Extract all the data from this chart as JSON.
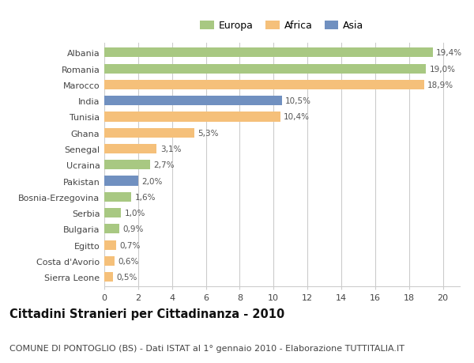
{
  "categories": [
    "Albania",
    "Romania",
    "Marocco",
    "India",
    "Tunisia",
    "Ghana",
    "Senegal",
    "Ucraina",
    "Pakistan",
    "Bosnia-Erzegovina",
    "Serbia",
    "Bulgaria",
    "Egitto",
    "Costa d'Avorio",
    "Sierra Leone"
  ],
  "values": [
    19.4,
    19.0,
    18.9,
    10.5,
    10.4,
    5.3,
    3.1,
    2.7,
    2.0,
    1.6,
    1.0,
    0.9,
    0.7,
    0.6,
    0.5
  ],
  "labels": [
    "19,4%",
    "19,0%",
    "18,9%",
    "10,5%",
    "10,4%",
    "5,3%",
    "3,1%",
    "2,7%",
    "2,0%",
    "1,6%",
    "1,0%",
    "0,9%",
    "0,7%",
    "0,6%",
    "0,5%"
  ],
  "continents": [
    "Europa",
    "Europa",
    "Africa",
    "Asia",
    "Africa",
    "Africa",
    "Africa",
    "Europa",
    "Asia",
    "Europa",
    "Europa",
    "Europa",
    "Africa",
    "Africa",
    "Africa"
  ],
  "colors": {
    "Europa": "#a8c882",
    "Africa": "#f5c07a",
    "Asia": "#7090c0"
  },
  "legend_order": [
    "Europa",
    "Africa",
    "Asia"
  ],
  "title": "Cittadini Stranieri per Cittadinanza - 2010",
  "subtitle": "COMUNE DI PONTOGLIO (BS) - Dati ISTAT al 1° gennaio 2010 - Elaborazione TUTTITALIA.IT",
  "xlim": [
    0,
    21
  ],
  "xticks": [
    0,
    2,
    4,
    6,
    8,
    10,
    12,
    14,
    16,
    18,
    20
  ],
  "background_color": "#ffffff",
  "bar_height": 0.6,
  "grid_color": "#cccccc",
  "title_fontsize": 10.5,
  "subtitle_fontsize": 8,
  "label_fontsize": 7.5,
  "tick_fontsize": 8,
  "legend_fontsize": 9
}
